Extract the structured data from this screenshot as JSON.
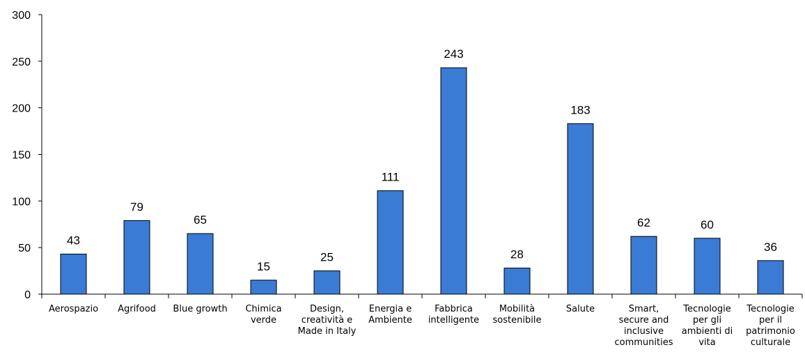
{
  "colors": {
    "bar": "#3a7bd5",
    "bar_stroke": "#000000",
    "axis": "#000000"
  },
  "chart_data": {
    "type": "bar",
    "title": "",
    "xlabel": "",
    "ylabel": "",
    "ylim": [
      0,
      300
    ],
    "yticks": [
      "0",
      "50",
      "100",
      "150",
      "200",
      "250",
      "300"
    ],
    "grid": false,
    "legend": "none",
    "categories": [
      [
        "Aerospazio"
      ],
      [
        "Agrifood"
      ],
      [
        "Blue growth"
      ],
      [
        "Chimica",
        "verde"
      ],
      [
        "Design,",
        "creatività e",
        "Made in Italy"
      ],
      [
        "Energia e",
        "Ambiente"
      ],
      [
        "Fabbrica",
        "intelligente"
      ],
      [
        "Mobilità",
        "sostenibile"
      ],
      [
        "Salute"
      ],
      [
        "Smart,",
        "secure and",
        "inclusive",
        "communities"
      ],
      [
        "Tecnologie",
        "per gli",
        "ambienti di",
        "vita"
      ],
      [
        "Tecnologie",
        "per il",
        "patrimonio",
        "culturale"
      ]
    ],
    "values": [
      43,
      79,
      65,
      15,
      25,
      111,
      243,
      28,
      183,
      62,
      60,
      36
    ]
  }
}
